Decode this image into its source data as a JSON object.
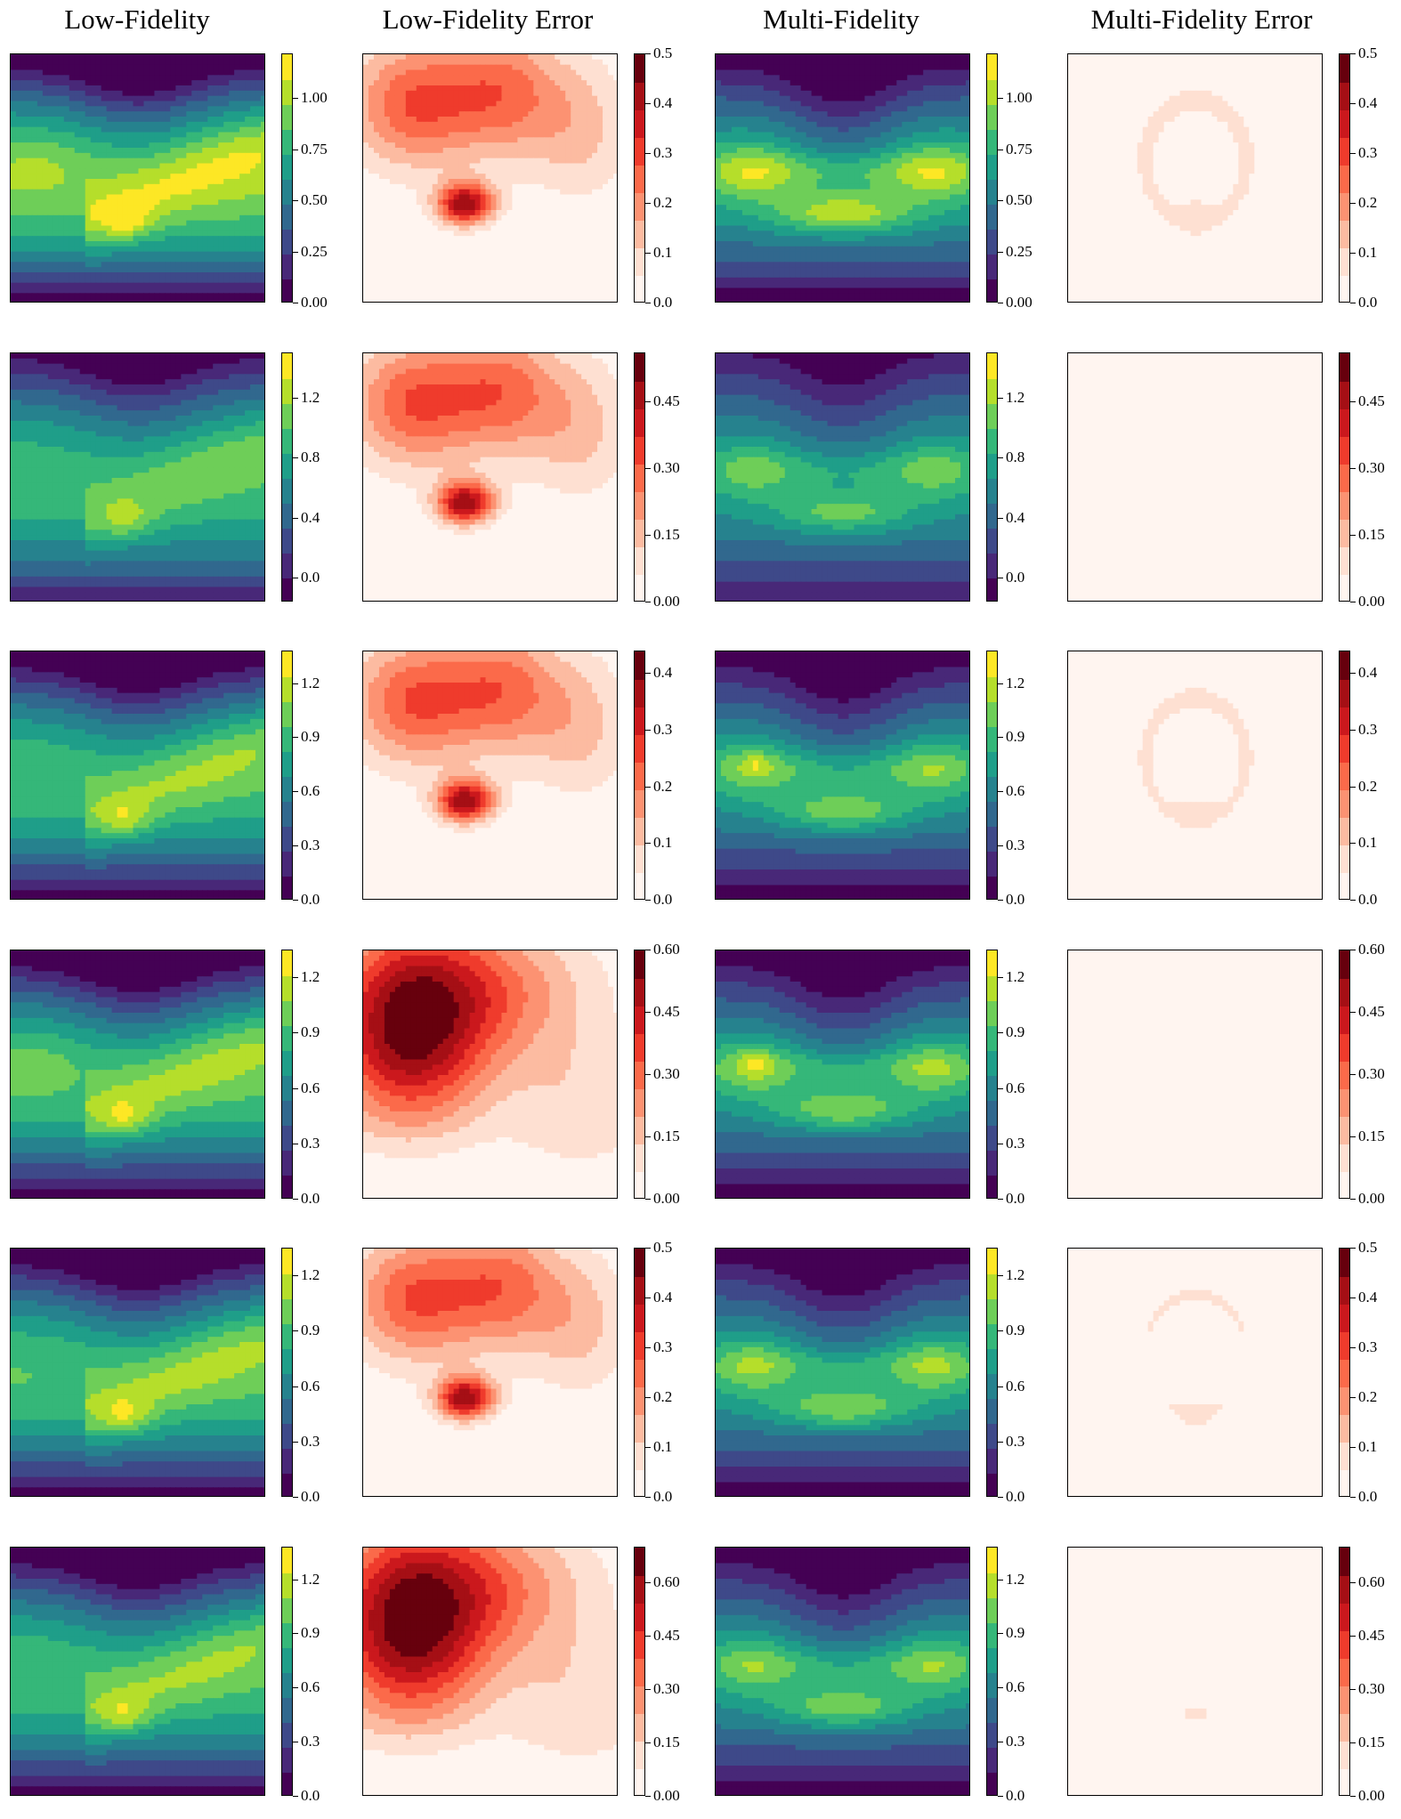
{
  "colormaps": {
    "viridis": [
      "#440154",
      "#482878",
      "#3e4989",
      "#31688e",
      "#26828e",
      "#1f9e89",
      "#35b779",
      "#6ece58",
      "#b5de2b",
      "#fde725"
    ],
    "reds": [
      "#fff5f0",
      "#fee0d2",
      "#fcbba1",
      "#fc9272",
      "#fb6a4a",
      "#ef3b2c",
      "#cb181d",
      "#a50f15",
      "#67000d"
    ]
  },
  "figure": {
    "column_titles": [
      "Low-Fidelity",
      "Low-Fidelity Error",
      "Multi-Fidelity",
      "Multi-Fidelity Error"
    ]
  },
  "chart_data": {
    "type": "heatmap",
    "layout": "6 rows x 4 columns of filled-contour panels, each with its own colorbar",
    "columns": [
      {
        "title": "Low-Fidelity",
        "colormap": "viridis"
      },
      {
        "title": "Low-Fidelity Error",
        "colormap": "reds"
      },
      {
        "title": "Multi-Fidelity",
        "colormap": "viridis"
      },
      {
        "title": "Multi-Fidelity Error",
        "colormap": "reds"
      }
    ],
    "rows": [
      {
        "field_colorbar": {
          "range": [
            0.0,
            1.22
          ],
          "ticks": [
            "0.00",
            "0.25",
            "0.50",
            "0.75",
            "1.00"
          ],
          "tick_values": [
            0,
            0.25,
            0.5,
            0.75,
            1.0
          ]
        },
        "error_colorbar": {
          "range": [
            0.0,
            0.5
          ],
          "ticks": [
            "0.0",
            "0.1",
            "0.2",
            "0.3",
            "0.4",
            "0.5"
          ],
          "tick_values": [
            0,
            0.1,
            0.2,
            0.3,
            0.4,
            0.5
          ]
        },
        "lf_error_peak": 0.5,
        "mf_error_peak": 0.12
      },
      {
        "field_colorbar": {
          "range": [
            -0.16,
            1.5
          ],
          "ticks": [
            "0.0",
            "0.4",
            "0.8",
            "1.2"
          ],
          "tick_values": [
            0,
            0.4,
            0.8,
            1.2
          ]
        },
        "error_colorbar": {
          "range": [
            0.0,
            0.56
          ],
          "ticks": [
            "0.00",
            "0.15",
            "0.30",
            "0.45"
          ],
          "tick_values": [
            0,
            0.15,
            0.3,
            0.45
          ]
        },
        "lf_error_peak": 0.56,
        "mf_error_peak": 0.03
      },
      {
        "field_colorbar": {
          "range": [
            0.0,
            1.38
          ],
          "ticks": [
            "0.0",
            "0.3",
            "0.6",
            "0.9",
            "1.2"
          ],
          "tick_values": [
            0,
            0.3,
            0.6,
            0.9,
            1.2
          ]
        },
        "error_colorbar": {
          "range": [
            0.0,
            0.44
          ],
          "ticks": [
            "0.0",
            "0.1",
            "0.2",
            "0.3",
            "0.4"
          ],
          "tick_values": [
            0,
            0.1,
            0.2,
            0.3,
            0.4
          ]
        },
        "lf_error_peak": 0.44,
        "mf_error_peak": 0.1
      },
      {
        "field_colorbar": {
          "range": [
            0.0,
            1.35
          ],
          "ticks": [
            "0.0",
            "0.3",
            "0.6",
            "0.9",
            "1.2"
          ],
          "tick_values": [
            0,
            0.3,
            0.6,
            0.9,
            1.2
          ]
        },
        "error_colorbar": {
          "range": [
            0.0,
            0.6
          ],
          "ticks": [
            "0.00",
            "0.15",
            "0.30",
            "0.45",
            "0.60"
          ],
          "tick_values": [
            0,
            0.15,
            0.3,
            0.45,
            0.6
          ]
        },
        "lf_error_peak": 0.6,
        "mf_error_peak": 0.04
      },
      {
        "field_colorbar": {
          "range": [
            0.0,
            1.35
          ],
          "ticks": [
            "0.0",
            "0.3",
            "0.6",
            "0.9",
            "1.2"
          ],
          "tick_values": [
            0,
            0.3,
            0.6,
            0.9,
            1.2
          ]
        },
        "error_colorbar": {
          "range": [
            0.0,
            0.5
          ],
          "ticks": [
            "0.0",
            "0.1",
            "0.2",
            "0.3",
            "0.4",
            "0.5"
          ],
          "tick_values": [
            0,
            0.1,
            0.2,
            0.3,
            0.4,
            0.5
          ]
        },
        "lf_error_peak": 0.5,
        "mf_error_peak": 0.1
      },
      {
        "field_colorbar": {
          "range": [
            0.0,
            1.38
          ],
          "ticks": [
            "0.0",
            "0.3",
            "0.6",
            "0.9",
            "1.2"
          ],
          "tick_values": [
            0,
            0.3,
            0.6,
            0.9,
            1.2
          ]
        },
        "error_colorbar": {
          "range": [
            0.0,
            0.7
          ],
          "ticks": [
            "0.00",
            "0.15",
            "0.30",
            "0.45",
            "0.60"
          ],
          "tick_values": [
            0,
            0.15,
            0.3,
            0.45,
            0.6
          ]
        },
        "lf_error_peak": 0.7,
        "mf_error_peak": 0.12
      }
    ]
  }
}
